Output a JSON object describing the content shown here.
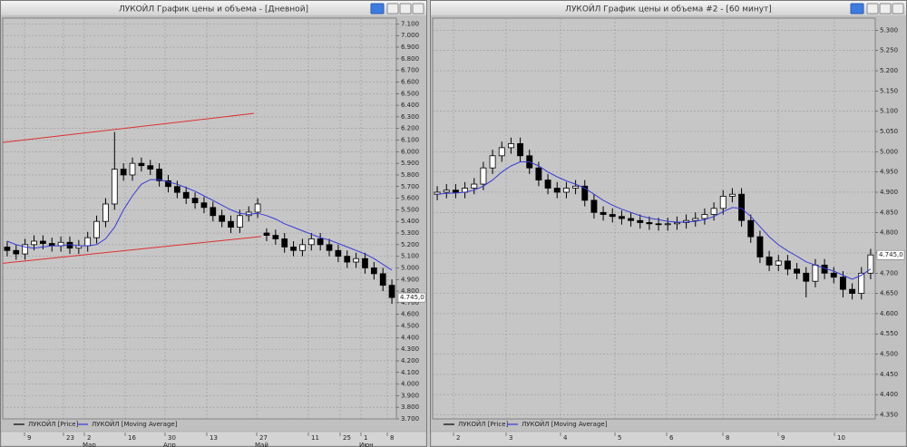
{
  "chart_data": [
    {
      "type": "candlestick",
      "title": "ЛУКОЙЛ График цены и объема - [Дневной]",
      "ylim": [
        3700,
        7150
      ],
      "yticks": [
        {
          "value": 7100,
          "label": "7.100"
        },
        {
          "value": 7000,
          "label": "7.000"
        },
        {
          "value": 6900,
          "label": "6.900"
        },
        {
          "value": 6800,
          "label": "6.800"
        },
        {
          "value": 6700,
          "label": "6.700"
        },
        {
          "value": 6600,
          "label": "6.600"
        },
        {
          "value": 6500,
          "label": "6.500"
        },
        {
          "value": 6400,
          "label": "6.400"
        },
        {
          "value": 6300,
          "label": "6.300"
        },
        {
          "value": 6200,
          "label": "6.200"
        },
        {
          "value": 6100,
          "label": "6.100"
        },
        {
          "value": 6000,
          "label": "6.000"
        },
        {
          "value": 5900,
          "label": "5.900"
        },
        {
          "value": 5800,
          "label": "5.800"
        },
        {
          "value": 5700,
          "label": "5.700"
        },
        {
          "value": 5600,
          "label": "5.600"
        },
        {
          "value": 5500,
          "label": "5.500"
        },
        {
          "value": 5400,
          "label": "5.400"
        },
        {
          "value": 5300,
          "label": "5.300"
        },
        {
          "value": 5200,
          "label": "5.200"
        },
        {
          "value": 5100,
          "label": "5.100"
        },
        {
          "value": 5000,
          "label": "5.000"
        },
        {
          "value": 4900,
          "label": "4.900"
        },
        {
          "value": 4800,
          "label": "4.800"
        },
        {
          "value": 4700,
          "label": "4.700"
        },
        {
          "value": 4600,
          "label": "4.600"
        },
        {
          "value": 4500,
          "label": "4.500"
        },
        {
          "value": 4400,
          "label": "4.400"
        },
        {
          "value": 4300,
          "label": "4.300"
        },
        {
          "value": 4200,
          "label": "4.200"
        },
        {
          "value": 4100,
          "label": "4.100"
        },
        {
          "value": 4000,
          "label": "4.000"
        },
        {
          "value": 3900,
          "label": "3.900"
        },
        {
          "value": 3800,
          "label": "3.800"
        },
        {
          "value": 3700,
          "label": "3.700"
        }
      ],
      "xticks": [
        "9",
        "23",
        "2",
        "16",
        "30",
        "13",
        "27",
        "11",
        "25",
        "1",
        "8"
      ],
      "xmonths": [
        "Мар",
        "Апр",
        "Май",
        "Июн"
      ],
      "last_price": {
        "value": 4745,
        "label": "4.745,0"
      },
      "trendlines": [
        {
          "color": "#e03030",
          "values": [
            6080,
            6330
          ]
        },
        {
          "color": "#e03030",
          "values": [
            5040,
            5270
          ]
        }
      ],
      "grid": true,
      "series": [
        {
          "name": "ЛУКОЙЛ [Price]",
          "color": "#000000",
          "open": [
            5180,
            5150,
            5120,
            5200,
            5230,
            5210,
            5190,
            5220,
            5170,
            5190,
            5260,
            5400,
            5550,
            5850,
            5800,
            5900,
            5880,
            5850,
            5750,
            5700,
            5650,
            5600,
            5560,
            5520,
            5450,
            5400,
            5350,
            5450,
            5480,
            5300,
            5280,
            5250,
            5180,
            5150,
            5200,
            5250,
            5200,
            5150,
            5100,
            5050,
            5080,
            5000,
            4950,
            4850
          ],
          "high": [
            5230,
            5200,
            5250,
            5280,
            5280,
            5260,
            5270,
            5270,
            5240,
            5310,
            5450,
            5600,
            6170,
            5900,
            5950,
            5950,
            5930,
            5900,
            5800,
            5750,
            5700,
            5650,
            5610,
            5570,
            5500,
            5450,
            5500,
            5530,
            5600,
            5340,
            5330,
            5300,
            5230,
            5250,
            5300,
            5300,
            5250,
            5200,
            5150,
            5130,
            5130,
            5050,
            5000,
            4900
          ],
          "low": [
            5100,
            5070,
            5070,
            5150,
            5160,
            5140,
            5140,
            5120,
            5120,
            5140,
            5210,
            5350,
            5500,
            5750,
            5750,
            5830,
            5800,
            5700,
            5650,
            5600,
            5550,
            5510,
            5470,
            5400,
            5350,
            5300,
            5300,
            5400,
            5430,
            5230,
            5200,
            5130,
            5100,
            5100,
            5150,
            5150,
            5100,
            5050,
            5000,
            5000,
            4950,
            4900,
            4800,
            4690
          ],
          "close": [
            5150,
            5120,
            5200,
            5230,
            5210,
            5190,
            5220,
            5170,
            5190,
            5260,
            5400,
            5550,
            5850,
            5800,
            5900,
            5880,
            5850,
            5750,
            5700,
            5650,
            5600,
            5560,
            5520,
            5450,
            5400,
            5350,
            5450,
            5480,
            5550,
            5280,
            5250,
            5180,
            5150,
            5200,
            5250,
            5200,
            5150,
            5100,
            5050,
            5080,
            5000,
            4950,
            4850,
            4745
          ]
        },
        {
          "name": "ЛУКОЙЛ [Moving Average]",
          "color": "#3a3ad8",
          "values": [
            5230,
            5200,
            5180,
            5170,
            5180,
            5190,
            5190,
            5200,
            5190,
            5190,
            5200,
            5250,
            5350,
            5500,
            5620,
            5720,
            5760,
            5760,
            5740,
            5720,
            5690,
            5660,
            5620,
            5580,
            5540,
            5500,
            5470,
            5460,
            5470,
            5450,
            5420,
            5380,
            5350,
            5320,
            5290,
            5260,
            5240,
            5210,
            5180,
            5150,
            5120,
            5080,
            5030,
            4980
          ]
        }
      ]
    },
    {
      "type": "candlestick",
      "title": "ЛУКОЙЛ График цены и объема #2 - [60 минут]",
      "ylim": [
        4340,
        5330
      ],
      "yticks": [
        {
          "value": 5300,
          "label": "5.300"
        },
        {
          "value": 5250,
          "label": "5.250"
        },
        {
          "value": 5200,
          "label": "5.200"
        },
        {
          "value": 5150,
          "label": "5.150"
        },
        {
          "value": 5100,
          "label": "5.100"
        },
        {
          "value": 5050,
          "label": "5.050"
        },
        {
          "value": 5000,
          "label": "5.000"
        },
        {
          "value": 4950,
          "label": "4.950"
        },
        {
          "value": 4900,
          "label": "4.900"
        },
        {
          "value": 4850,
          "label": "4.850"
        },
        {
          "value": 4800,
          "label": "4.800"
        },
        {
          "value": 4750,
          "label": "4.750"
        },
        {
          "value": 4700,
          "label": "4.700"
        },
        {
          "value": 4650,
          "label": "4.650"
        },
        {
          "value": 4600,
          "label": "4.600"
        },
        {
          "value": 4550,
          "label": "4.550"
        },
        {
          "value": 4500,
          "label": "4.500"
        },
        {
          "value": 4450,
          "label": "4.450"
        },
        {
          "value": 4400,
          "label": "4.400"
        },
        {
          "value": 4350,
          "label": "4.350"
        }
      ],
      "xticks": [
        "2",
        "3",
        "4",
        "5",
        "6",
        "8",
        "9",
        "10"
      ],
      "last_price": {
        "value": 4745,
        "label": "4.745,0"
      },
      "grid": true,
      "series": [
        {
          "name": "ЛУКОЙЛ [Price]",
          "color": "#000000",
          "open": [
            4895,
            4900,
            4905,
            4900,
            4910,
            4920,
            4960,
            4990,
            5010,
            5020,
            4990,
            4960,
            4930,
            4910,
            4900,
            4910,
            4915,
            4880,
            4850,
            4845,
            4840,
            4835,
            4830,
            4825,
            4822,
            4820,
            4822,
            4825,
            4830,
            4835,
            4845,
            4860,
            4890,
            4895,
            4830,
            4790,
            4740,
            4720,
            4730,
            4710,
            4700,
            4680,
            4720,
            4700,
            4690,
            4660,
            4650,
            4700
          ],
          "high": [
            4915,
            4920,
            4920,
            4925,
            4935,
            4975,
            5005,
            5025,
            5035,
            5035,
            5005,
            4975,
            4945,
            4925,
            4925,
            4930,
            4930,
            4895,
            4865,
            4860,
            4855,
            4850,
            4845,
            4840,
            4837,
            4837,
            4840,
            4845,
            4850,
            4860,
            4875,
            4905,
            4910,
            4910,
            4845,
            4805,
            4755,
            4745,
            4745,
            4725,
            4715,
            4735,
            4735,
            4715,
            4705,
            4675,
            4715,
            4760
          ],
          "low": [
            4880,
            4885,
            4885,
            4885,
            4895,
            4905,
            4945,
            4975,
            4995,
            4975,
            4945,
            4915,
            4895,
            4885,
            4885,
            4895,
            4865,
            4835,
            4830,
            4825,
            4820,
            4815,
            4810,
            4807,
            4805,
            4805,
            4807,
            4810,
            4815,
            4820,
            4830,
            4845,
            4875,
            4815,
            4775,
            4725,
            4705,
            4705,
            4695,
            4685,
            4640,
            4665,
            4685,
            4675,
            4640,
            4635,
            4635,
            4685
          ],
          "close": [
            4900,
            4905,
            4900,
            4910,
            4920,
            4960,
            4990,
            5010,
            5020,
            4990,
            4960,
            4930,
            4910,
            4900,
            4910,
            4915,
            4880,
            4850,
            4845,
            4840,
            4835,
            4830,
            4825,
            4822,
            4820,
            4822,
            4825,
            4830,
            4835,
            4845,
            4860,
            4890,
            4895,
            4830,
            4790,
            4740,
            4720,
            4730,
            4710,
            4700,
            4680,
            4720,
            4700,
            4690,
            4660,
            4650,
            4700,
            4745
          ]
        },
        {
          "name": "ЛУКОЙЛ [Moving Average]",
          "color": "#3a3ad8",
          "values": [
            4895,
            4897,
            4898,
            4900,
            4905,
            4915,
            4930,
            4950,
            4965,
            4975,
            4975,
            4965,
            4950,
            4938,
            4928,
            4920,
            4910,
            4895,
            4880,
            4868,
            4858,
            4850,
            4842,
            4836,
            4832,
            4828,
            4826,
            4826,
            4828,
            4832,
            4840,
            4852,
            4862,
            4860,
            4840,
            4815,
            4790,
            4770,
            4755,
            4742,
            4728,
            4720,
            4712,
            4705,
            4695,
            4685,
            4695,
            4710
          ]
        }
      ]
    }
  ]
}
